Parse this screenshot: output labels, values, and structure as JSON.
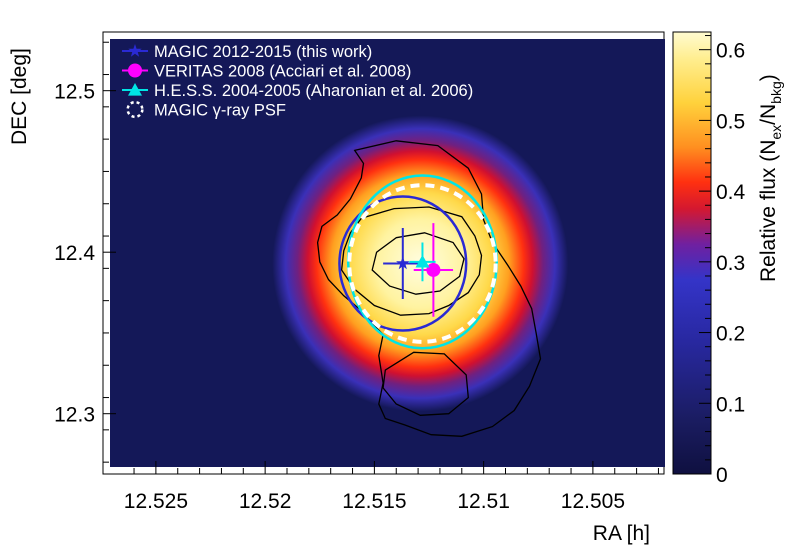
{
  "chart_data": {
    "type": "heatmap",
    "xlabel": "RA [h]",
    "ylabel": "DEC [deg]",
    "xlim": [
      12.5271,
      12.5017
    ],
    "ylim": [
      12.267,
      12.532
    ],
    "x_ticks": [
      "12.525",
      "12.52",
      "12.515",
      "12.51",
      "12.505"
    ],
    "x_tick_values": [
      12.525,
      12.52,
      12.515,
      12.51,
      12.505
    ],
    "y_ticks": [
      "12.3",
      "12.4",
      "12.5"
    ],
    "y_tick_values": [
      12.3,
      12.4,
      12.5
    ],
    "colorbar": {
      "title_base": "Relative flux (N",
      "title_sub1": "ex",
      "title_mid": "/N",
      "title_sub2": "bkg",
      "title_end": ")",
      "range": [
        0,
        0.625
      ],
      "ticks": [
        "0",
        "0.1",
        "0.2",
        "0.3",
        "0.4",
        "0.5",
        "0.6"
      ],
      "tick_values": [
        0,
        0.1,
        0.2,
        0.3,
        0.4,
        0.5,
        0.6
      ]
    },
    "peak": {
      "ra": 12.5129,
      "dec": 12.393,
      "value": 0.62
    },
    "legend_placement": "top-left",
    "series": [
      {
        "name": "MAGIC 2012-2015 (this work)",
        "marker": "star",
        "color": "#2a2ad4",
        "ra": 12.5137,
        "dec": 12.393,
        "ra_err": 0.0009,
        "dec_err": 0.022,
        "ellipse": {
          "ra_radius": 0.0029,
          "dec_radius": 0.0415
        }
      },
      {
        "name": "VERITAS 2008 (Acciari et al. 2008)",
        "marker": "circle",
        "color": "#ff00ff",
        "ra": 12.5123,
        "dec": 12.389,
        "ra_err": 0.0009,
        "dec_err": 0.029
      },
      {
        "name": "H.E.S.S. 2004-2005 (Aharonian et al. 2006)",
        "marker": "triangle",
        "color": "#00e5e5",
        "ra": 12.5128,
        "dec": 12.394,
        "ra_err": 0.0006,
        "dec_err": 0.012,
        "ellipse": {
          "ra_radius": 0.0034,
          "dec_radius": 0.0535
        }
      },
      {
        "name": "MAGIC γ-ray PSF",
        "marker": "dashed-circle",
        "color": "#ffffff",
        "ra": 12.5128,
        "dec": 12.393,
        "ellipse": {
          "ra_radius": 0.00335,
          "dec_radius": 0.0485
        }
      }
    ],
    "contours": [
      {
        "name": "outer-contour",
        "points": [
          [
            12.5159,
            12.463
          ],
          [
            12.514,
            12.469
          ],
          [
            12.5121,
            12.466
          ],
          [
            12.5107,
            12.452
          ],
          [
            12.5101,
            12.436
          ],
          [
            12.51,
            12.42
          ],
          [
            12.5096,
            12.406
          ],
          [
            12.5089,
            12.392
          ],
          [
            12.5083,
            12.379
          ],
          [
            12.5078,
            12.365
          ],
          [
            12.5076,
            12.35
          ],
          [
            12.5074,
            12.334
          ],
          [
            12.5079,
            12.317
          ],
          [
            12.5086,
            12.302
          ],
          [
            12.5096,
            12.292
          ],
          [
            12.511,
            12.286
          ],
          [
            12.5124,
            12.287
          ],
          [
            12.5136,
            12.293
          ],
          [
            12.5145,
            12.297
          ],
          [
            12.5148,
            12.306
          ],
          [
            12.5146,
            12.319
          ],
          [
            12.5148,
            12.336
          ],
          [
            12.5146,
            12.349
          ],
          [
            12.5151,
            12.356
          ],
          [
            12.5157,
            12.365
          ],
          [
            12.5164,
            12.373
          ],
          [
            12.5171,
            12.383
          ],
          [
            12.5175,
            12.394
          ],
          [
            12.5176,
            12.406
          ],
          [
            12.5174,
            12.416
          ],
          [
            12.5167,
            12.423
          ],
          [
            12.5161,
            12.433
          ],
          [
            12.5156,
            12.446
          ],
          [
            12.5155,
            12.455
          ]
        ]
      },
      {
        "name": "inner-contour-1",
        "points": [
          [
            12.5156,
            12.421
          ],
          [
            12.5141,
            12.427
          ],
          [
            12.5125,
            12.428
          ],
          [
            12.511,
            12.422
          ],
          [
            12.5104,
            12.41
          ],
          [
            12.5101,
            12.398
          ],
          [
            12.5102,
            12.386
          ],
          [
            12.5107,
            12.375
          ],
          [
            12.5116,
            12.367
          ],
          [
            12.5125,
            12.362
          ],
          [
            12.5138,
            12.361
          ],
          [
            12.515,
            12.367
          ],
          [
            12.5159,
            12.377
          ],
          [
            12.5165,
            12.389
          ],
          [
            12.5164,
            12.401
          ],
          [
            12.5161,
            12.412
          ]
        ]
      },
      {
        "name": "inner-contour-2",
        "points": [
          [
            12.514,
            12.409
          ],
          [
            12.5127,
            12.412
          ],
          [
            12.5114,
            12.406
          ],
          [
            12.5109,
            12.396
          ],
          [
            12.5111,
            12.385
          ],
          [
            12.512,
            12.376
          ],
          [
            12.5131,
            12.374
          ],
          [
            12.5143,
            12.379
          ],
          [
            12.5151,
            12.389
          ],
          [
            12.5149,
            12.4
          ]
        ]
      },
      {
        "name": "inner-contour-3",
        "points": [
          [
            12.5145,
            12.327
          ],
          [
            12.5132,
            12.338
          ],
          [
            12.5118,
            12.337
          ],
          [
            12.5108,
            12.324
          ],
          [
            12.5107,
            12.31
          ],
          [
            12.5116,
            12.3
          ],
          [
            12.5129,
            12.299
          ],
          [
            12.514,
            12.306
          ],
          [
            12.5146,
            12.316
          ]
        ]
      }
    ]
  }
}
